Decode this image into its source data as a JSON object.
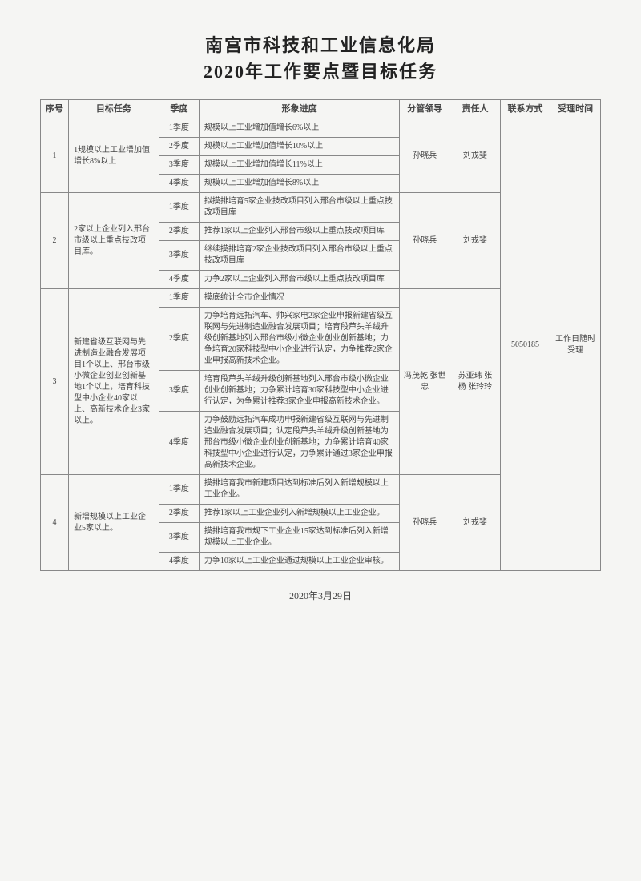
{
  "title_line1": "南宫市科技和工业信息化局",
  "title_line2": "2020年工作要点暨目标任务",
  "headers": {
    "seq": "序号",
    "task": "目标任务",
    "quarter": "季度",
    "progress": "形象进度",
    "leader": "分管领导",
    "responsible": "责任人",
    "contact": "联系方式",
    "time": "受理时间"
  },
  "contact_value": "5050185",
  "time_value": "工作日随时受理",
  "footer_date": "2020年3月29日",
  "tasks": [
    {
      "seq": "1",
      "task": "1规模以上工业增加值增长8%以上",
      "leader": "孙晓兵",
      "responsible": "刘戎斐",
      "quarters": [
        {
          "q": "1季度",
          "p": "规模以上工业增加值增长6%以上"
        },
        {
          "q": "2季度",
          "p": "规模以上工业增加值增长10%以上"
        },
        {
          "q": "3季度",
          "p": "规模以上工业增加值增长11%以上"
        },
        {
          "q": "4季度",
          "p": "规模以上工业增加值增长8%以上"
        }
      ]
    },
    {
      "seq": "2",
      "task": "2家以上企业列入邢台市级以上重点技改项目库。",
      "leader": "孙晓兵",
      "responsible": "刘戎斐",
      "quarters": [
        {
          "q": "1季度",
          "p": "拟摸排培育5家企业技改项目列入邢台市级以上重点技改项目库"
        },
        {
          "q": "2季度",
          "p": "推荐1家以上企业列入邢台市级以上重点技改项目库"
        },
        {
          "q": "3季度",
          "p": "继续摸排培育2家企业技改项目列入邢台市级以上重点技改项目库"
        },
        {
          "q": "4季度",
          "p": "力争2家以上企业列入邢台市级以上重点技改项目库"
        }
      ]
    },
    {
      "seq": "3",
      "task": "新建省级互联网与先进制造业融合发展项目1个以上、邢台市级小微企业创业创新基地1个以上，培育科技型中小企业40家以上、高新技术企业3家以上。",
      "leader": "冯茂乾 张世忠",
      "responsible": "苏亚玮 张 杨 张玲玲",
      "quarters": [
        {
          "q": "1季度",
          "p": "摸底统计全市企业情况"
        },
        {
          "q": "2季度",
          "p": "力争培育远拓汽车、帅兴家电2家企业申报新建省级互联网与先进制造业融合发展项目；培育段芦头羊绒升级创新基地列入邢台市级小微企业创业创新基地；力争培育20家科技型中小企业进行认定，力争推荐2家企业申报高新技术企业。"
        },
        {
          "q": "3季度",
          "p": "培育段芦头羊绒升级创新基地列入邢台市级小微企业创业创新基地；力争累计培育30家科技型中小企业进行认定，为争累计推荐3家企业申报高新技术企业。"
        },
        {
          "q": "4季度",
          "p": "力争鼓励远拓汽车成功申报新建省级互联网与先进制造业融合发展项目；认定段芦头羊绒升级创新基地为邢台市级小微企业创业创新基地；力争累计培育40家科技型中小企业进行认定，力争累计通过3家企业申报高新技术企业。"
        }
      ]
    },
    {
      "seq": "4",
      "task": "新增规模以上工业企业5家以上。",
      "leader": "孙晓兵",
      "responsible": "刘戎斐",
      "quarters": [
        {
          "q": "1季度",
          "p": "摸排培育我市新建项目达到标准后列入新增规模以上工业企业。"
        },
        {
          "q": "2季度",
          "p": "推荐1家以上工业企业列入新增规模以上工业企业。"
        },
        {
          "q": "3季度",
          "p": "摸排培育我市规下工业企业15家达到标准后列入新增规模以上工业企业。"
        },
        {
          "q": "4季度",
          "p": "力争10家以上工业企业通过规模以上工业企业审核。"
        }
      ]
    }
  ]
}
